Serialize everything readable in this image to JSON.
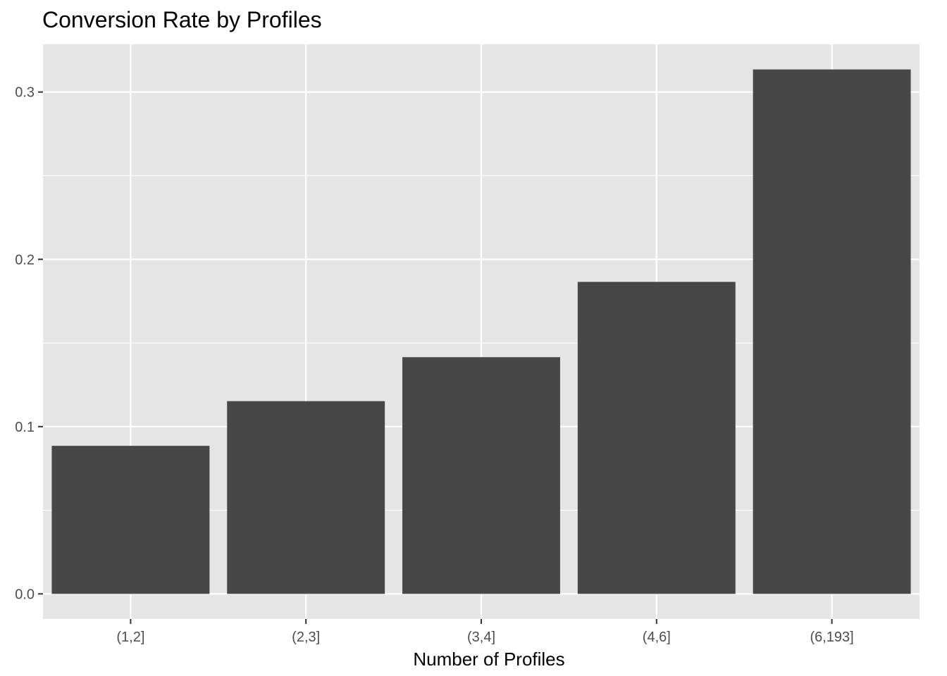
{
  "chart_data": {
    "type": "bar",
    "title": "Conversion Rate by Profiles",
    "xlabel": "Number of Profiles",
    "ylabel": "",
    "categories": [
      "(1,2]",
      "(2,3]",
      "(3,4]",
      "(4,6]",
      "(6,193]"
    ],
    "values": [
      0.0885,
      0.1152,
      0.1415,
      0.1865,
      0.3135
    ],
    "ylim": [
      -0.015,
      0.3285
    ],
    "yticks": [
      0.0,
      0.1,
      0.2,
      0.3
    ],
    "ytick_labels": [
      "0.0",
      "0.1",
      "0.2",
      "0.3"
    ],
    "grid": true,
    "colors": {
      "bar": "#474747",
      "panel": "#e5e5e5",
      "grid": "#ffffff",
      "axis_text": "#4d4d4d"
    }
  }
}
